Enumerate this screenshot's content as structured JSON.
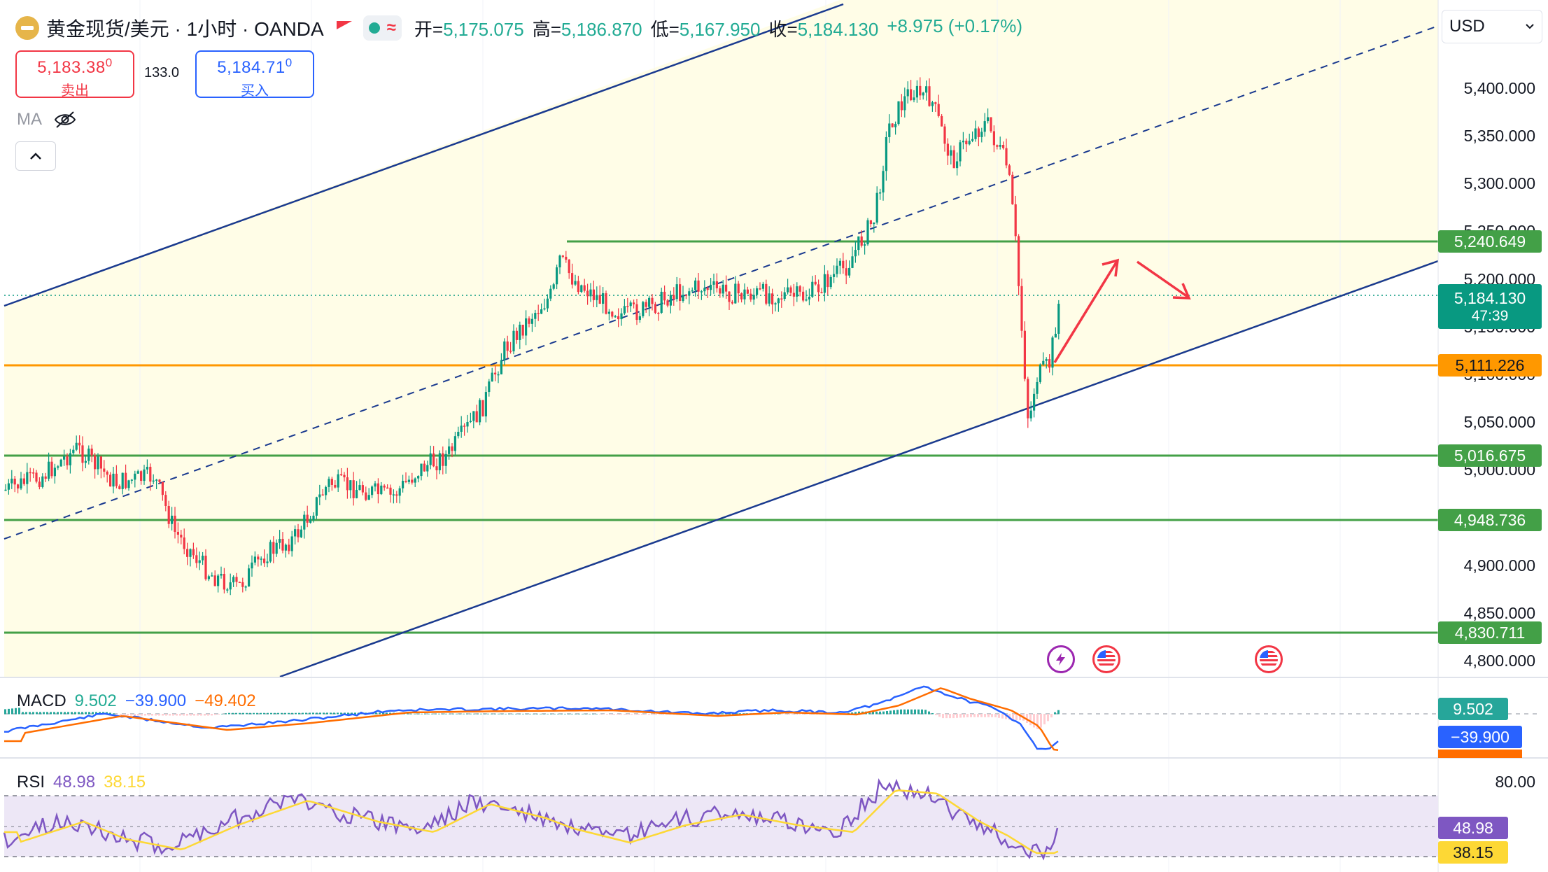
{
  "header": {
    "title": "黄金现货/美元 · 1小时 · OANDA",
    "ohlc": [
      {
        "k": "开=",
        "v": "5,175.075"
      },
      {
        "k": "高=",
        "v": "5,186.870"
      },
      {
        "k": "低=",
        "v": "5,167.950"
      },
      {
        "k": "收=",
        "v": "5,184.130"
      },
      {
        "k": "",
        "v": "+8.975 (+0.17%)"
      }
    ]
  },
  "trade": {
    "sell_price": "5,183.38",
    "sell_price_sup": "0",
    "sell_label": "卖出",
    "spread": "133.0",
    "buy_price": "5,184.71",
    "buy_price_sup": "0",
    "buy_label": "买入"
  },
  "ma_label": "MA",
  "currency": "USD",
  "price_axis": [
    "5,400.000",
    "5,350.000",
    "5,300.000",
    "5,250.000",
    "5,200.000",
    "5,150.000",
    "5,100.000",
    "5,050.000",
    "5,000.000",
    "4,900.000",
    "4,850.000",
    "4,800.000"
  ],
  "level_tags": [
    {
      "value": "5,240.649",
      "color": "#43a047"
    },
    {
      "value": "5,111.226",
      "color": "#ff9800"
    },
    {
      "value": "5,016.675",
      "color": "#43a047"
    },
    {
      "value": "4,948.736",
      "color": "#43a047"
    },
    {
      "value": "4,830.711",
      "color": "#43a047"
    }
  ],
  "last_price": {
    "value": "5,184.130",
    "countdown": "47:39",
    "color": "#089981"
  },
  "macd": {
    "label": "MACD",
    "v1": "9.502",
    "v2": "−39.900",
    "v3": "−49.402",
    "tag1": "9.502",
    "tag2": "−39.900"
  },
  "rsi": {
    "label": "RSI",
    "v1": "48.98",
    "v2": "38.15",
    "axis": "80.00",
    "tag1": "48.98",
    "tag2": "38.15"
  },
  "colors": {
    "up": "#089981",
    "down": "#f23645",
    "channel": "#1a3a8f",
    "support": "#43a047",
    "pivot": "#ff9800",
    "arrow": "#f23645"
  },
  "icons": [
    "lightning-event-icon",
    "us-flag-event-icon",
    "us-flag-event-icon"
  ]
}
